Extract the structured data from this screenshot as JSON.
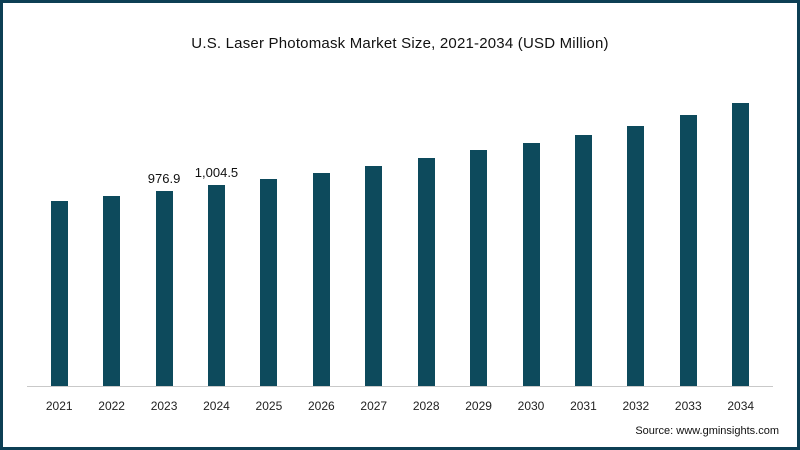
{
  "page": {
    "background": "#ffffff",
    "border_color": "#0d3f54"
  },
  "chart_data": {
    "type": "bar",
    "title": "U.S. Laser Photomask Market Size, 2021-2034 (USD Million)",
    "categories": [
      "2021",
      "2022",
      "2023",
      "2024",
      "2025",
      "2026",
      "2027",
      "2028",
      "2029",
      "2030",
      "2031",
      "2032",
      "2033",
      "2034"
    ],
    "values": [
      925,
      950,
      976.9,
      1004.5,
      1035,
      1065,
      1100,
      1140,
      1180,
      1215,
      1255,
      1300,
      1355,
      1415
    ],
    "data_labels": {
      "2023": "976.9",
      "2024": "1,004.5"
    },
    "bar_color": "#0d4a5c",
    "xlabel": "",
    "ylabel": "",
    "ylim": [
      0,
      1500
    ],
    "grid": false,
    "legend": false,
    "axis_line_color": "#c9c9c9"
  },
  "footer": {
    "source_label": "Source:",
    "source_url": "www.gminsights.com"
  }
}
